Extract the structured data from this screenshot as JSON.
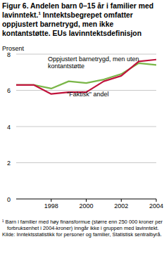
{
  "chart_data": {
    "type": "line",
    "title": "Figur 6. Andelen barn 0–15 år i familier med lavinntekt.¹ Inntektsbegrepet omfatter oppjustert barnetrygd, men ikke kontantstøtte. EUs lavinntektsdefinisjon",
    "y_label": "Prosent",
    "footnote": "¹ Barn i familier med høy finansformue (større enn 250 000 kroner per forbruksenhet i 2004-kroner) inngår ikke i gruppen med lavinntekt.",
    "source": "Kilde: Inntektsstatistikk for personer og familier, Statistisk sentralbyrå.",
    "x": [
      1996,
      1997,
      1998,
      1999,
      2000,
      2001,
      2002,
      2003,
      2004
    ],
    "series": [
      {
        "name": "Oppjustert barnetrygd, men uten kontantstøtte",
        "color": "#7ab648",
        "values": [
          6.3,
          6.3,
          6.1,
          6.5,
          6.4,
          6.6,
          6.9,
          7.5,
          7.4
        ]
      },
      {
        "name": "\"Faktisk\" andel",
        "color": "#c0143c",
        "values": [
          6.3,
          6.3,
          5.8,
          5.9,
          5.9,
          6.5,
          6.8,
          7.6,
          7.7
        ]
      }
    ],
    "xlim": [
      1996,
      2004
    ],
    "xticks": [
      1998,
      2000,
      2002,
      2004
    ],
    "ylim": [
      0,
      8
    ],
    "yticks": [
      0,
      2,
      4,
      6,
      8
    ],
    "grid": true
  }
}
